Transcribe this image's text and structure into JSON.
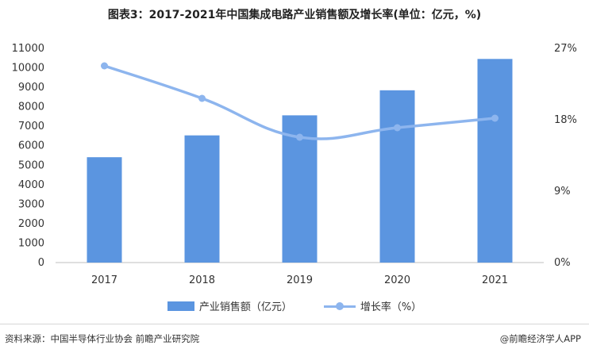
{
  "title": "图表3：2017-2021年中国集成电路产业销售额及增长率(单位：亿元，%)",
  "chart_data": {
    "type": "bar",
    "categories": [
      "2017",
      "2018",
      "2019",
      "2020",
      "2021"
    ],
    "series": [
      {
        "name": "产业销售额（亿元）",
        "type": "bar",
        "axis": "left",
        "color": "#5b95e0",
        "values": [
          5411,
          6532,
          7562,
          8848,
          10458
        ]
      },
      {
        "name": "增长率（%）",
        "type": "line",
        "axis": "right",
        "color": "#8db5ee",
        "values": [
          24.8,
          20.7,
          15.8,
          17.0,
          18.2
        ]
      }
    ],
    "y_left": {
      "min": 0,
      "max": 11000,
      "step": 1000,
      "ticks": [
        "0",
        "1000",
        "2000",
        "3000",
        "4000",
        "5000",
        "6000",
        "7000",
        "8000",
        "9000",
        "10000",
        "11000"
      ]
    },
    "y_right": {
      "min": 0,
      "max": 27,
      "ticks_values": [
        0,
        9,
        18,
        27
      ],
      "ticks": [
        "0%",
        "9%",
        "18%",
        "27%"
      ]
    },
    "grid": false,
    "legend": "bottom"
  },
  "legend": {
    "bar_label": "产业销售额（亿元）",
    "line_label": "增长率（%）"
  },
  "footer": {
    "source": "资料来源：中国半导体行业协会 前瞻产业研究院",
    "brand": "@前瞻经济学人APP"
  }
}
